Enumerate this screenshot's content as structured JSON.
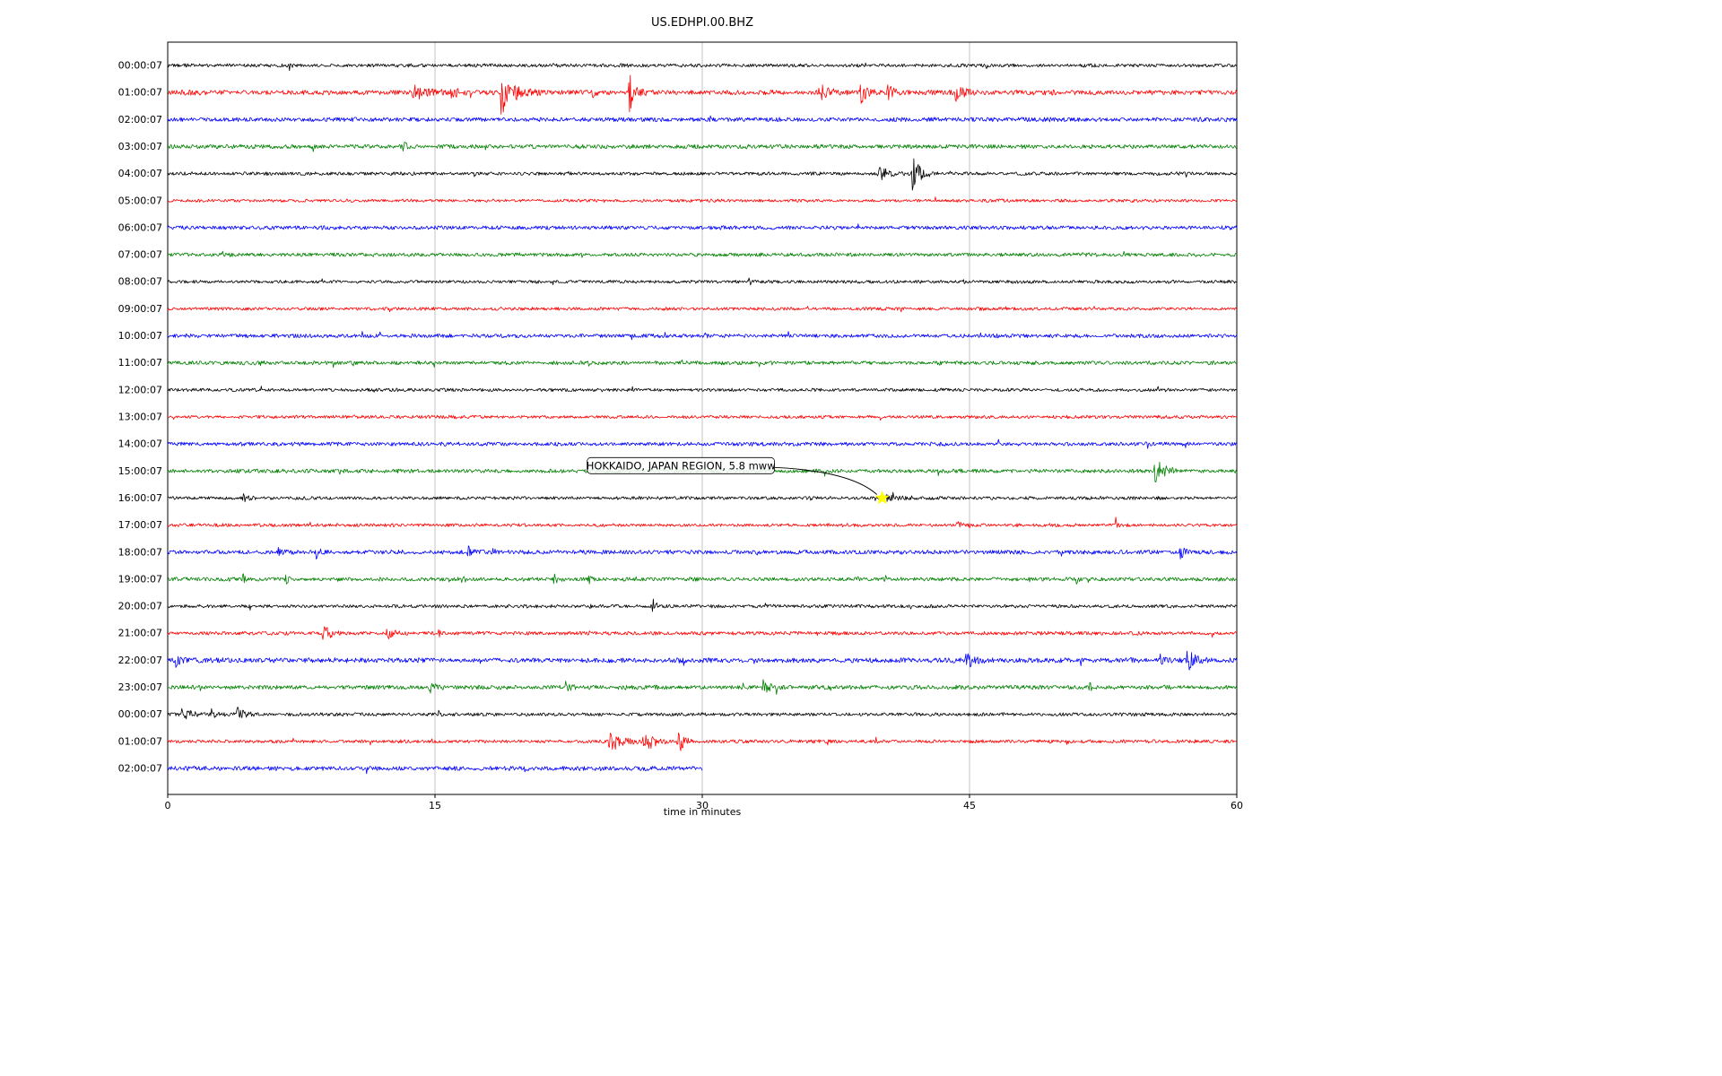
{
  "chart_data": {
    "type": "line",
    "title": "US.EDHPI.00.BHZ",
    "xlabel": "time in minutes",
    "x_ticks": [
      0,
      15,
      30,
      45,
      60
    ],
    "xlim": [
      0,
      60
    ],
    "grid_minutes": [
      15,
      30,
      45
    ],
    "trace_colors_cycle": [
      "#000000",
      "#ff0000",
      "#0000ff",
      "#008000"
    ],
    "annotation": {
      "text": "HOKKAIDO, JAPAN REGION, 5.8 mww",
      "row_index": 16,
      "event_minute": 40.1,
      "star_color": "#ffff00",
      "label_center_minute": 28.8,
      "label_offset_rows": -1.2
    },
    "rows": [
      {
        "label": "00:00:07",
        "amp": 1.8,
        "bursts": [
          {
            "t": 6.8,
            "dur": 0.2,
            "amp": 6
          }
        ]
      },
      {
        "label": "01:00:07",
        "amp": 2.6,
        "bursts": [
          {
            "t": 13.8,
            "dur": 1.6,
            "amp": 9
          },
          {
            "t": 15.9,
            "dur": 0.9,
            "amp": 7
          },
          {
            "t": 18.7,
            "dur": 0.6,
            "amp": 38
          },
          {
            "t": 19.5,
            "dur": 1.2,
            "amp": 10
          },
          {
            "t": 23.8,
            "dur": 0.5,
            "amp": 5
          },
          {
            "t": 25.9,
            "dur": 0.9,
            "amp": 20
          },
          {
            "t": 36.6,
            "dur": 1.4,
            "amp": 8
          },
          {
            "t": 38.9,
            "dur": 0.9,
            "amp": 11
          },
          {
            "t": 40.4,
            "dur": 0.7,
            "amp": 9
          },
          {
            "t": 44.2,
            "dur": 1.1,
            "amp": 9
          }
        ]
      },
      {
        "label": "02:00:07",
        "amp": 2.2,
        "bursts": [
          {
            "t": 30.4,
            "dur": 0.25,
            "amp": 11
          }
        ]
      },
      {
        "label": "03:00:07",
        "amp": 2.2,
        "bursts": [
          {
            "t": 13.2,
            "dur": 0.7,
            "amp": 4
          }
        ]
      },
      {
        "label": "04:00:07",
        "amp": 1.8,
        "bursts": [
          {
            "t": 39.9,
            "dur": 1.6,
            "amp": 7
          },
          {
            "t": 41.8,
            "dur": 1.0,
            "amp": 20
          }
        ]
      },
      {
        "label": "05:00:07",
        "amp": 1.6,
        "bursts": []
      },
      {
        "label": "06:00:07",
        "amp": 2.0,
        "bursts": []
      },
      {
        "label": "07:00:07",
        "amp": 2.0,
        "bursts": []
      },
      {
        "label": "08:00:07",
        "amp": 1.7,
        "bursts": []
      },
      {
        "label": "09:00:07",
        "amp": 1.7,
        "bursts": []
      },
      {
        "label": "10:00:07",
        "amp": 2.0,
        "bursts": []
      },
      {
        "label": "11:00:07",
        "amp": 2.0,
        "bursts": []
      },
      {
        "label": "12:00:07",
        "amp": 1.7,
        "bursts": []
      },
      {
        "label": "13:00:07",
        "amp": 1.7,
        "bursts": [
          {
            "t": 13.0,
            "dur": 0.3,
            "amp": 5
          }
        ]
      },
      {
        "label": "14:00:07",
        "amp": 2.0,
        "bursts": [
          {
            "t": 57.0,
            "dur": 0.5,
            "amp": 5
          }
        ]
      },
      {
        "label": "15:00:07",
        "amp": 2.0,
        "bursts": [
          {
            "t": 55.4,
            "dur": 1.3,
            "amp": 16
          }
        ]
      },
      {
        "label": "16:00:07",
        "amp": 1.7,
        "bursts": [
          {
            "t": 4.2,
            "dur": 0.9,
            "amp": 4
          },
          {
            "t": 36.0,
            "dur": 0.25,
            "amp": 8
          },
          {
            "t": 40.1,
            "dur": 2.2,
            "amp": 3
          }
        ]
      },
      {
        "label": "17:00:07",
        "amp": 1.7,
        "bursts": [
          {
            "t": 44.3,
            "dur": 0.35,
            "amp": 7
          },
          {
            "t": 53.2,
            "dur": 0.45,
            "amp": 8
          }
        ]
      },
      {
        "label": "18:00:07",
        "amp": 2.2,
        "bursts": [
          {
            "t": 6.2,
            "dur": 0.4,
            "amp": 5
          },
          {
            "t": 8.3,
            "dur": 0.5,
            "amp": 7
          },
          {
            "t": 16.8,
            "dur": 0.5,
            "amp": 7
          },
          {
            "t": 18.2,
            "dur": 0.4,
            "amp": 6
          },
          {
            "t": 56.8,
            "dur": 0.6,
            "amp": 8
          }
        ]
      },
      {
        "label": "19:00:07",
        "amp": 2.0,
        "bursts": [
          {
            "t": 4.2,
            "dur": 0.3,
            "amp": 8
          },
          {
            "t": 6.6,
            "dur": 0.3,
            "amp": 6
          },
          {
            "t": 16.5,
            "dur": 0.4,
            "amp": 7
          },
          {
            "t": 21.6,
            "dur": 0.5,
            "amp": 11
          },
          {
            "t": 23.6,
            "dur": 0.3,
            "amp": 6
          },
          {
            "t": 40.2,
            "dur": 0.4,
            "amp": 7
          },
          {
            "t": 51.0,
            "dur": 0.3,
            "amp": 4
          }
        ]
      },
      {
        "label": "20:00:07",
        "amp": 1.8,
        "bursts": [
          {
            "t": 23.5,
            "dur": 0.3,
            "amp": 7
          },
          {
            "t": 27.2,
            "dur": 0.4,
            "amp": 11
          }
        ]
      },
      {
        "label": "21:00:07",
        "amp": 1.9,
        "bursts": [
          {
            "t": 8.7,
            "dur": 1.1,
            "amp": 9
          },
          {
            "t": 12.3,
            "dur": 0.9,
            "amp": 8
          },
          {
            "t": 15.2,
            "dur": 0.3,
            "amp": 4
          }
        ]
      },
      {
        "label": "22:00:07",
        "amp": 2.6,
        "bursts": [
          {
            "t": 0.4,
            "dur": 0.6,
            "amp": 7
          },
          {
            "t": 44.8,
            "dur": 0.9,
            "amp": 11
          },
          {
            "t": 55.7,
            "dur": 0.5,
            "amp": 7
          },
          {
            "t": 57.2,
            "dur": 0.9,
            "amp": 14
          }
        ]
      },
      {
        "label": "23:00:07",
        "amp": 2.2,
        "bursts": [
          {
            "t": 14.7,
            "dur": 0.7,
            "amp": 8
          },
          {
            "t": 22.3,
            "dur": 0.5,
            "amp": 9
          },
          {
            "t": 33.4,
            "dur": 0.9,
            "amp": 9
          },
          {
            "t": 51.7,
            "dur": 0.4,
            "amp": 7
          }
        ]
      },
      {
        "label": "00:00:07",
        "amp": 1.8,
        "bursts": [
          {
            "t": 0.8,
            "dur": 1.2,
            "amp": 7
          },
          {
            "t": 2.4,
            "dur": 0.7,
            "amp": 8
          },
          {
            "t": 3.9,
            "dur": 0.9,
            "amp": 9
          },
          {
            "t": 15.2,
            "dur": 0.25,
            "amp": 5
          }
        ]
      },
      {
        "label": "01:00:07",
        "amp": 1.8,
        "bursts": [
          {
            "t": 24.8,
            "dur": 1.6,
            "amp": 12
          },
          {
            "t": 26.7,
            "dur": 1.3,
            "amp": 16
          },
          {
            "t": 28.6,
            "dur": 0.7,
            "amp": 18
          }
        ]
      },
      {
        "label": "02:00:07",
        "amp": 2.4,
        "end_min": 30,
        "bursts": [
          {
            "t": 20.0,
            "dur": 0.3,
            "amp": 4
          }
        ]
      }
    ]
  }
}
